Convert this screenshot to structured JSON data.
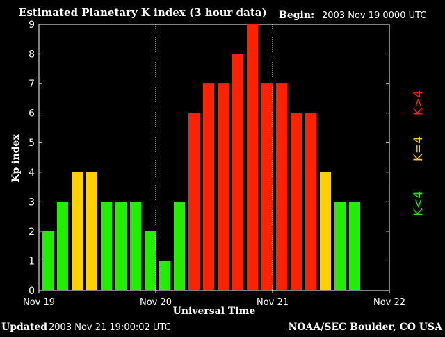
{
  "header": {
    "title": "Estimated Planetary K index (3 hour data)",
    "begin_label": "Begin:",
    "begin_value": "2003 Nov 19 0000 UTC"
  },
  "footer": {
    "updated_label": "Updated",
    "updated_value": "2003 Nov 21 19:00:02 UTC",
    "source": "NOAA/SEC Boulder, CO USA"
  },
  "legend": {
    "low": "K<4",
    "eq": "K=4",
    "high": "K>4"
  },
  "colors": {
    "low": "#22ee00",
    "eq": "#ffd000",
    "high": "#ff2200",
    "background": "#000000",
    "axis": "#ffffff"
  },
  "chart_data": {
    "type": "bar",
    "title": "Estimated Planetary K index (3 hour data)",
    "xlabel": "Universal Time",
    "ylabel": "Kp index",
    "ylim": [
      0,
      9
    ],
    "yticks": [
      "0",
      "1",
      "2",
      "3",
      "4",
      "5",
      "6",
      "7",
      "8",
      "9"
    ],
    "xticks": [
      "Nov 19",
      "Nov 20",
      "Nov 21",
      "Nov 22"
    ],
    "slots_total": 24,
    "day_dividers_at_slots": [
      8,
      16
    ],
    "values": [
      2,
      3,
      4,
      4,
      3,
      3,
      3,
      2,
      1,
      3,
      6,
      7,
      7,
      8,
      9,
      7,
      7,
      6,
      6,
      4,
      3,
      3
    ]
  }
}
